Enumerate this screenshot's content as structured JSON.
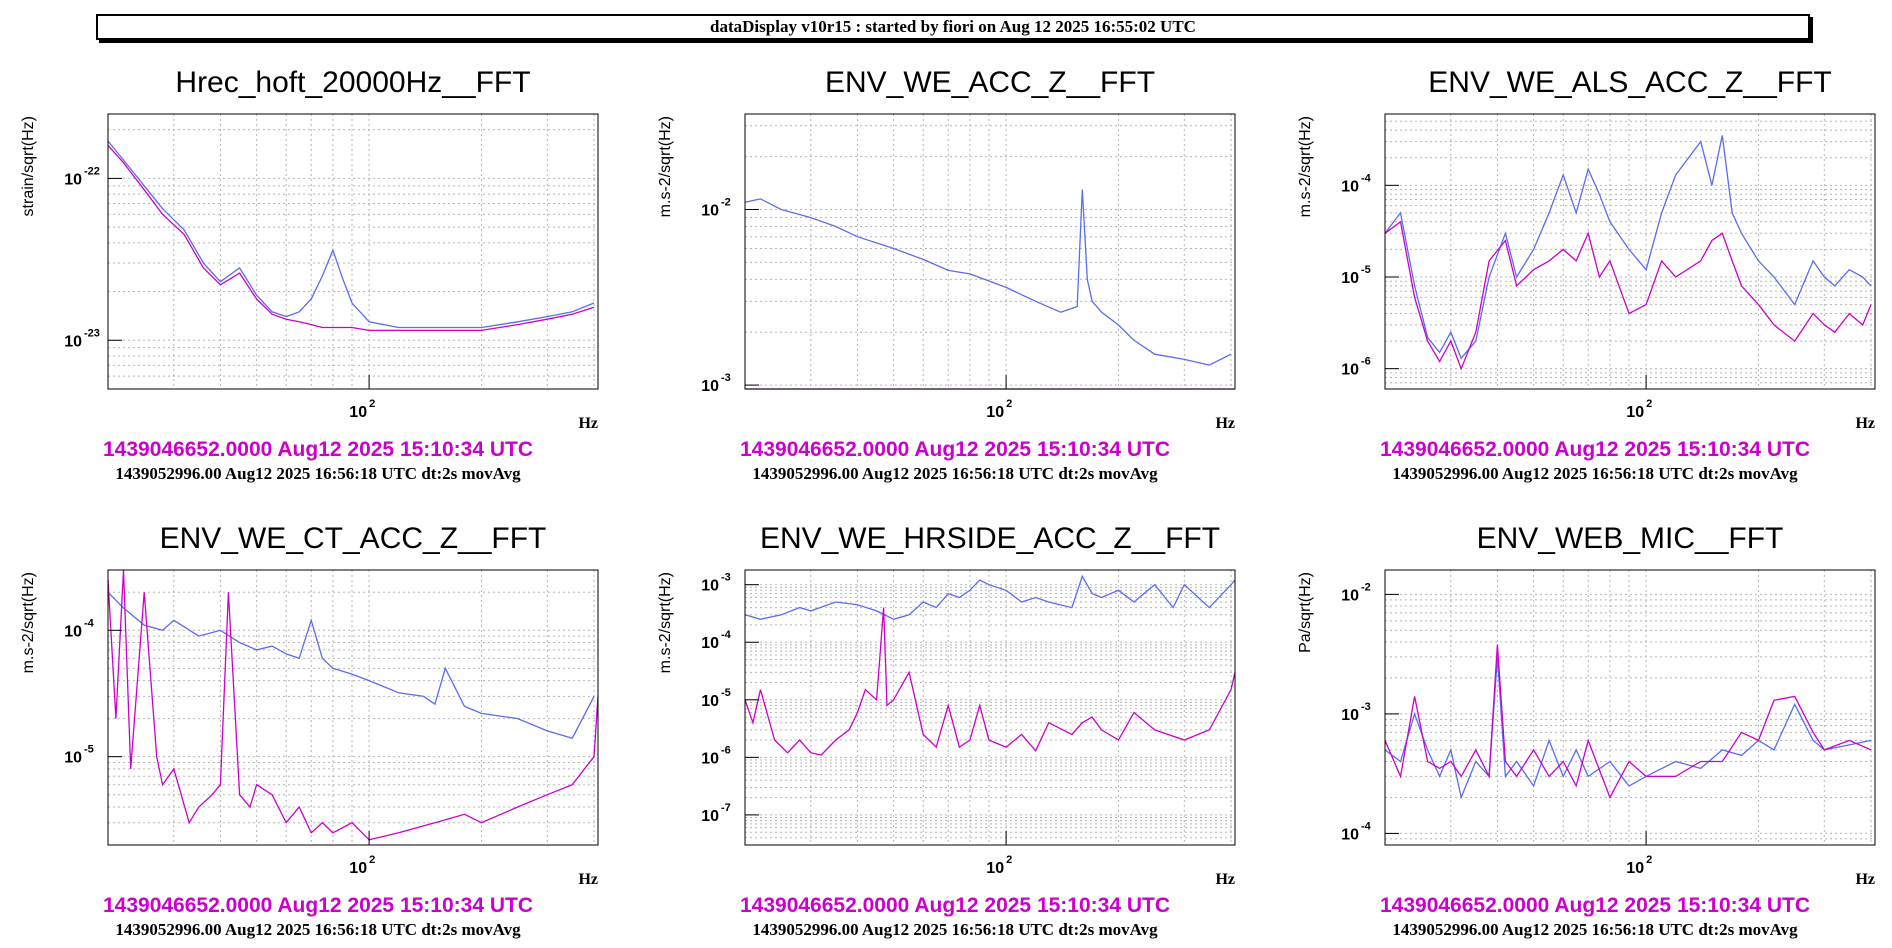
{
  "header": {
    "title": "dataDisplay v10r15 : started by fiori on Aug 12 2025 16:55:02 UTC"
  },
  "colors": {
    "ref": "#cc00cc",
    "live": "#5a6cf0"
  },
  "chart_data": [
    {
      "type": "line",
      "title": "Hrec_hoft_20000Hz__FFT",
      "ylabel": "strain/sqrt(Hz)",
      "xlabel": "Hz",
      "log_x": true,
      "log_y": true,
      "grid": true,
      "xlim": [
        20,
        410
      ],
      "ylim": [
        5e-24,
        2.5e-22
      ],
      "x_ticks": [
        {
          "v": 100,
          "m": "10",
          "e": "2"
        }
      ],
      "y_ticks": [
        {
          "v": 1e-23,
          "m": "10",
          "e": "-23"
        },
        {
          "v": 1e-22,
          "m": "10",
          "e": "-22"
        }
      ],
      "ref_time": "1439046652.0000 Aug12 2025 15:10:34 UTC",
      "live_time": "1439052996.00 Aug12 2025 16:56:18 UTC dt:2s movAvg",
      "series": [
        {
          "color": "#5a6cf0",
          "x": [
            20,
            22,
            25,
            28,
            32,
            36,
            40,
            45,
            50,
            55,
            60,
            65,
            70,
            75,
            80,
            85,
            90,
            100,
            120,
            150,
            200,
            250,
            300,
            350,
            400
          ],
          "y": [
            1.7e-22,
            1.3e-22,
            9e-23,
            6.5e-23,
            4.8e-23,
            3e-23,
            2.3e-23,
            2.8e-23,
            1.9e-23,
            1.5e-23,
            1.4e-23,
            1.5e-23,
            1.8e-23,
            2.5e-23,
            3.6e-23,
            2.4e-23,
            1.7e-23,
            1.3e-23,
            1.2e-23,
            1.2e-23,
            1.2e-23,
            1.3e-23,
            1.4e-23,
            1.5e-23,
            1.7e-23
          ]
        },
        {
          "color": "#cc00cc",
          "x": [
            20,
            22,
            25,
            28,
            32,
            36,
            40,
            45,
            50,
            55,
            60,
            65,
            70,
            75,
            80,
            85,
            90,
            100,
            120,
            150,
            200,
            250,
            300,
            350,
            400
          ],
          "y": [
            1.6e-22,
            1.25e-22,
            8.5e-23,
            6e-23,
            4.5e-23,
            2.8e-23,
            2.2e-23,
            2.6e-23,
            1.8e-23,
            1.45e-23,
            1.35e-23,
            1.3e-23,
            1.25e-23,
            1.2e-23,
            1.2e-23,
            1.2e-23,
            1.2e-23,
            1.15e-23,
            1.15e-23,
            1.15e-23,
            1.15e-23,
            1.25e-23,
            1.35e-23,
            1.45e-23,
            1.6e-23
          ]
        }
      ]
    },
    {
      "type": "line",
      "title": "ENV_WE_ACC_Z__FFT",
      "ylabel": "m.s-2/sqrt(Hz)",
      "xlabel": "Hz",
      "log_x": true,
      "log_y": true,
      "grid": true,
      "xlim": [
        20,
        410
      ],
      "ylim": [
        0.00095,
        0.035
      ],
      "x_ticks": [
        {
          "v": 100,
          "m": "10",
          "e": "2"
        }
      ],
      "y_ticks": [
        {
          "v": 0.001,
          "m": "10",
          "e": "-3"
        },
        {
          "v": 0.01,
          "m": "10",
          "e": "-2"
        }
      ],
      "ref_time": "1439046652.0000 Aug12 2025 15:10:34 UTC",
      "live_time": "1439052996.00 Aug12 2025 16:56:18 UTC dt:2s movAvg",
      "series": [
        {
          "color": "#5a6cf0",
          "x": [
            20,
            22,
            25,
            30,
            35,
            40,
            50,
            60,
            70,
            80,
            100,
            120,
            140,
            155,
            160,
            165,
            170,
            180,
            200,
            220,
            250,
            300,
            350,
            400
          ],
          "y": [
            0.011,
            0.0115,
            0.01,
            0.009,
            0.008,
            0.007,
            0.006,
            0.0052,
            0.0045,
            0.0043,
            0.0036,
            0.003,
            0.0026,
            0.0028,
            0.013,
            0.004,
            0.003,
            0.0026,
            0.0022,
            0.0018,
            0.0015,
            0.0014,
            0.0013,
            0.0015
          ]
        },
        {
          "color": "#cc00cc",
          "x": [
            20,
            410
          ],
          "y": [
            0.00095,
            0.00095
          ]
        }
      ]
    },
    {
      "type": "line",
      "title": "ENV_WE_ALS_ACC_Z__FFT",
      "ylabel": "m.s-2/sqrt(Hz)",
      "xlabel": "Hz",
      "log_x": true,
      "log_y": true,
      "grid": true,
      "xlim": [
        20,
        410
      ],
      "ylim": [
        6e-07,
        0.0006
      ],
      "x_ticks": [
        {
          "v": 100,
          "m": "10",
          "e": "2"
        }
      ],
      "y_ticks": [
        {
          "v": 1e-06,
          "m": "10",
          "e": "-6"
        },
        {
          "v": 1e-05,
          "m": "10",
          "e": "-5"
        },
        {
          "v": 0.0001,
          "m": "10",
          "e": "-4"
        }
      ],
      "ref_time": "1439046652.0000 Aug12 2025 15:10:34 UTC",
      "live_time": "1439052996.00 Aug12 2025 16:56:18 UTC dt:2s movAvg",
      "series": [
        {
          "color": "#5a6cf0",
          "x": [
            20,
            22,
            24,
            26,
            28,
            30,
            32,
            35,
            38,
            42,
            45,
            50,
            55,
            60,
            65,
            70,
            75,
            80,
            90,
            100,
            110,
            120,
            140,
            150,
            160,
            170,
            180,
            200,
            220,
            250,
            280,
            300,
            320,
            350,
            380,
            400
          ],
          "y": [
            3e-05,
            5e-05,
            8e-06,
            2.2e-06,
            1.5e-06,
            2.5e-06,
            1.3e-06,
            2e-06,
            1e-05,
            3e-05,
            1e-05,
            2e-05,
            5e-05,
            0.00013,
            5e-05,
            0.00015,
            8e-05,
            4e-05,
            2e-05,
            1.2e-05,
            5e-05,
            0.00013,
            0.0003,
            0.0001,
            0.00035,
            5e-05,
            3e-05,
            1.5e-05,
            1e-05,
            5e-06,
            1.5e-05,
            1e-05,
            8e-06,
            1.2e-05,
            1e-05,
            8e-06
          ]
        },
        {
          "color": "#cc00cc",
          "x": [
            20,
            22,
            24,
            26,
            28,
            30,
            32,
            35,
            38,
            42,
            45,
            50,
            55,
            60,
            65,
            70,
            75,
            80,
            90,
            100,
            110,
            120,
            140,
            150,
            160,
            170,
            180,
            200,
            220,
            250,
            280,
            300,
            320,
            350,
            380,
            400
          ],
          "y": [
            3e-05,
            4e-05,
            6e-06,
            2e-06,
            1.2e-06,
            2e-06,
            1e-06,
            2.5e-06,
            1.5e-05,
            2.5e-05,
            8e-06,
            1.2e-05,
            1.5e-05,
            2e-05,
            1.5e-05,
            3e-05,
            1e-05,
            1.5e-05,
            4e-06,
            5e-06,
            1.5e-05,
            1e-05,
            1.5e-05,
            2.5e-05,
            3e-05,
            1.5e-05,
            8e-06,
            5e-06,
            3e-06,
            2e-06,
            4e-06,
            3e-06,
            2.5e-06,
            4e-06,
            3e-06,
            5e-06
          ]
        }
      ]
    },
    {
      "type": "line",
      "title": "ENV_WE_CT_ACC_Z__FFT",
      "ylabel": "m.s-2/sqrt(Hz)",
      "xlabel": "Hz",
      "log_x": true,
      "log_y": true,
      "grid": true,
      "xlim": [
        20,
        410
      ],
      "ylim": [
        2e-06,
        0.0003
      ],
      "x_ticks": [
        {
          "v": 100,
          "m": "10",
          "e": "2"
        }
      ],
      "y_ticks": [
        {
          "v": 1e-05,
          "m": "10",
          "e": "-5"
        },
        {
          "v": 0.0001,
          "m": "10",
          "e": "-4"
        }
      ],
      "ref_time": "1439046652.0000 Aug12 2025 15:10:34 UTC",
      "live_time": "1439052996.00 Aug12 2025 16:56:18 UTC dt:2s movAvg",
      "series": [
        {
          "color": "#5a6cf0",
          "x": [
            20,
            22,
            25,
            28,
            30,
            35,
            40,
            45,
            50,
            55,
            60,
            65,
            70,
            75,
            80,
            90,
            100,
            120,
            140,
            150,
            160,
            180,
            200,
            250,
            300,
            350,
            400
          ],
          "y": [
            0.0002,
            0.00015,
            0.00011,
            0.0001,
            0.00012,
            9e-05,
            0.0001,
            8e-05,
            7e-05,
            7.5e-05,
            6.5e-05,
            6e-05,
            0.00012,
            6e-05,
            5e-05,
            4.5e-05,
            4e-05,
            3.2e-05,
            3e-05,
            2.6e-05,
            5e-05,
            2.5e-05,
            2.2e-05,
            2e-05,
            1.6e-05,
            1.4e-05,
            3e-05
          ]
        },
        {
          "color": "#cc00cc",
          "x": [
            20,
            21,
            22,
            23,
            25,
            27,
            28,
            30,
            33,
            35,
            38,
            40,
            42,
            45,
            48,
            50,
            55,
            60,
            65,
            70,
            75,
            80,
            90,
            100,
            120,
            150,
            180,
            200,
            250,
            300,
            350,
            400,
            410
          ],
          "y": [
            0.00025,
            2e-05,
            0.0003,
            8e-06,
            0.0002,
            1e-05,
            6e-06,
            8e-06,
            3e-06,
            4e-06,
            5e-06,
            6e-06,
            0.0002,
            5e-06,
            4e-06,
            6e-06,
            5e-06,
            3e-06,
            4e-06,
            2.5e-06,
            3e-06,
            2.5e-06,
            3e-06,
            2.2e-06,
            2.5e-06,
            3e-06,
            3.5e-06,
            3e-06,
            4e-06,
            5e-06,
            6e-06,
            1e-05,
            3e-05
          ]
        }
      ]
    },
    {
      "type": "line",
      "title": "ENV_WE_HRSIDE_ACC_Z__FFT",
      "ylabel": "m.s-2/sqrt(Hz)",
      "xlabel": "Hz",
      "log_x": true,
      "log_y": true,
      "grid": true,
      "xlim": [
        20,
        410
      ],
      "ylim": [
        3e-08,
        0.0018
      ],
      "x_ticks": [
        {
          "v": 100,
          "m": "10",
          "e": "2"
        }
      ],
      "y_ticks": [
        {
          "v": 1e-07,
          "m": "10",
          "e": "-7"
        },
        {
          "v": 1e-06,
          "m": "10",
          "e": "-6"
        },
        {
          "v": 1e-05,
          "m": "10",
          "e": "-5"
        },
        {
          "v": 0.0001,
          "m": "10",
          "e": "-4"
        },
        {
          "v": 0.001,
          "m": "10",
          "e": "-3"
        }
      ],
      "ref_time": "1439046652.0000 Aug12 2025 15:10:34 UTC",
      "live_time": "1439052996.00 Aug12 2025 16:56:18 UTC dt:2s movAvg",
      "series": [
        {
          "color": "#5a6cf0",
          "x": [
            20,
            22,
            25,
            28,
            30,
            35,
            40,
            45,
            50,
            55,
            60,
            65,
            70,
            75,
            80,
            85,
            90,
            100,
            110,
            120,
            130,
            150,
            160,
            170,
            180,
            200,
            220,
            250,
            280,
            300,
            350,
            400,
            410
          ],
          "y": [
            0.0003,
            0.00025,
            0.0003,
            0.0004,
            0.00035,
            0.0005,
            0.00045,
            0.00035,
            0.00025,
            0.0003,
            0.0005,
            0.0004,
            0.0007,
            0.0006,
            0.0008,
            0.0012,
            0.001,
            0.0008,
            0.0005,
            0.0006,
            0.0005,
            0.0004,
            0.0014,
            0.0007,
            0.0006,
            0.0008,
            0.0005,
            0.001,
            0.0004,
            0.001,
            0.0004,
            0.001,
            0.0012
          ]
        },
        {
          "color": "#cc00cc",
          "x": [
            20,
            21,
            22,
            24,
            26,
            28,
            30,
            32,
            35,
            38,
            40,
            42,
            45,
            47,
            48,
            50,
            55,
            60,
            65,
            70,
            75,
            80,
            85,
            90,
            100,
            110,
            120,
            130,
            150,
            160,
            170,
            180,
            200,
            220,
            250,
            300,
            350,
            400,
            410
          ],
          "y": [
            1e-05,
            4e-06,
            1.5e-05,
            2e-06,
            1.2e-06,
            2e-06,
            1.2e-06,
            1.1e-06,
            2e-06,
            3e-06,
            6e-06,
            1.5e-05,
            1e-05,
            0.0004,
            8e-06,
            1e-05,
            3e-05,
            2.5e-06,
            1.5e-06,
            8e-06,
            1.5e-06,
            2e-06,
            8e-06,
            2e-06,
            1.5e-06,
            2.5e-06,
            1.3e-06,
            4e-06,
            2.5e-06,
            4e-06,
            5e-06,
            3e-06,
            2e-06,
            6e-06,
            3e-06,
            2e-06,
            3e-06,
            1.5e-05,
            3e-05
          ]
        }
      ]
    },
    {
      "type": "line",
      "title": "ENV_WEB_MIC__FFT",
      "ylabel": "Pa/sqrt(Hz)",
      "xlabel": "Hz",
      "log_x": true,
      "log_y": true,
      "grid": true,
      "xlim": [
        20,
        410
      ],
      "ylim": [
        8e-05,
        0.016
      ],
      "x_ticks": [
        {
          "v": 100,
          "m": "10",
          "e": "2"
        }
      ],
      "y_ticks": [
        {
          "v": 0.0001,
          "m": "10",
          "e": "-4"
        },
        {
          "v": 0.001,
          "m": "10",
          "e": "-3"
        },
        {
          "v": 0.01,
          "m": "10",
          "e": "-2"
        }
      ],
      "ref_time": "1439046652.0000 Aug12 2025 15:10:34 UTC",
      "live_time": "1439052996.00 Aug12 2025 16:56:18 UTC dt:2s movAvg",
      "series": [
        {
          "color": "#5a6cf0",
          "x": [
            20,
            22,
            24,
            26,
            28,
            30,
            32,
            35,
            38,
            40,
            42,
            45,
            50,
            55,
            60,
            65,
            70,
            80,
            90,
            100,
            120,
            140,
            160,
            180,
            200,
            220,
            250,
            280,
            300,
            350,
            400
          ],
          "y": [
            0.0005,
            0.0004,
            0.001,
            0.0005,
            0.0003,
            0.0005,
            0.0002,
            0.0004,
            0.0003,
            0.003,
            0.0003,
            0.0004,
            0.00025,
            0.0006,
            0.0003,
            0.0005,
            0.0003,
            0.0004,
            0.00025,
            0.0003,
            0.0004,
            0.00035,
            0.0005,
            0.00045,
            0.0006,
            0.0005,
            0.0012,
            0.0006,
            0.0005,
            0.00055,
            0.0006
          ]
        },
        {
          "color": "#cc00cc",
          "x": [
            20,
            22,
            24,
            26,
            28,
            30,
            32,
            35,
            38,
            40,
            42,
            45,
            50,
            55,
            60,
            65,
            70,
            80,
            90,
            100,
            120,
            140,
            160,
            180,
            200,
            220,
            250,
            280,
            300,
            350,
            400
          ],
          "y": [
            0.0006,
            0.0003,
            0.0014,
            0.0004,
            0.00035,
            0.0004,
            0.0003,
            0.0005,
            0.0003,
            0.0038,
            0.0004,
            0.0003,
            0.0005,
            0.0003,
            0.0004,
            0.00025,
            0.0006,
            0.0002,
            0.0004,
            0.0003,
            0.0003,
            0.0004,
            0.0004,
            0.0007,
            0.0006,
            0.0013,
            0.0014,
            0.0007,
            0.0005,
            0.0006,
            0.0005
          ]
        }
      ]
    }
  ]
}
